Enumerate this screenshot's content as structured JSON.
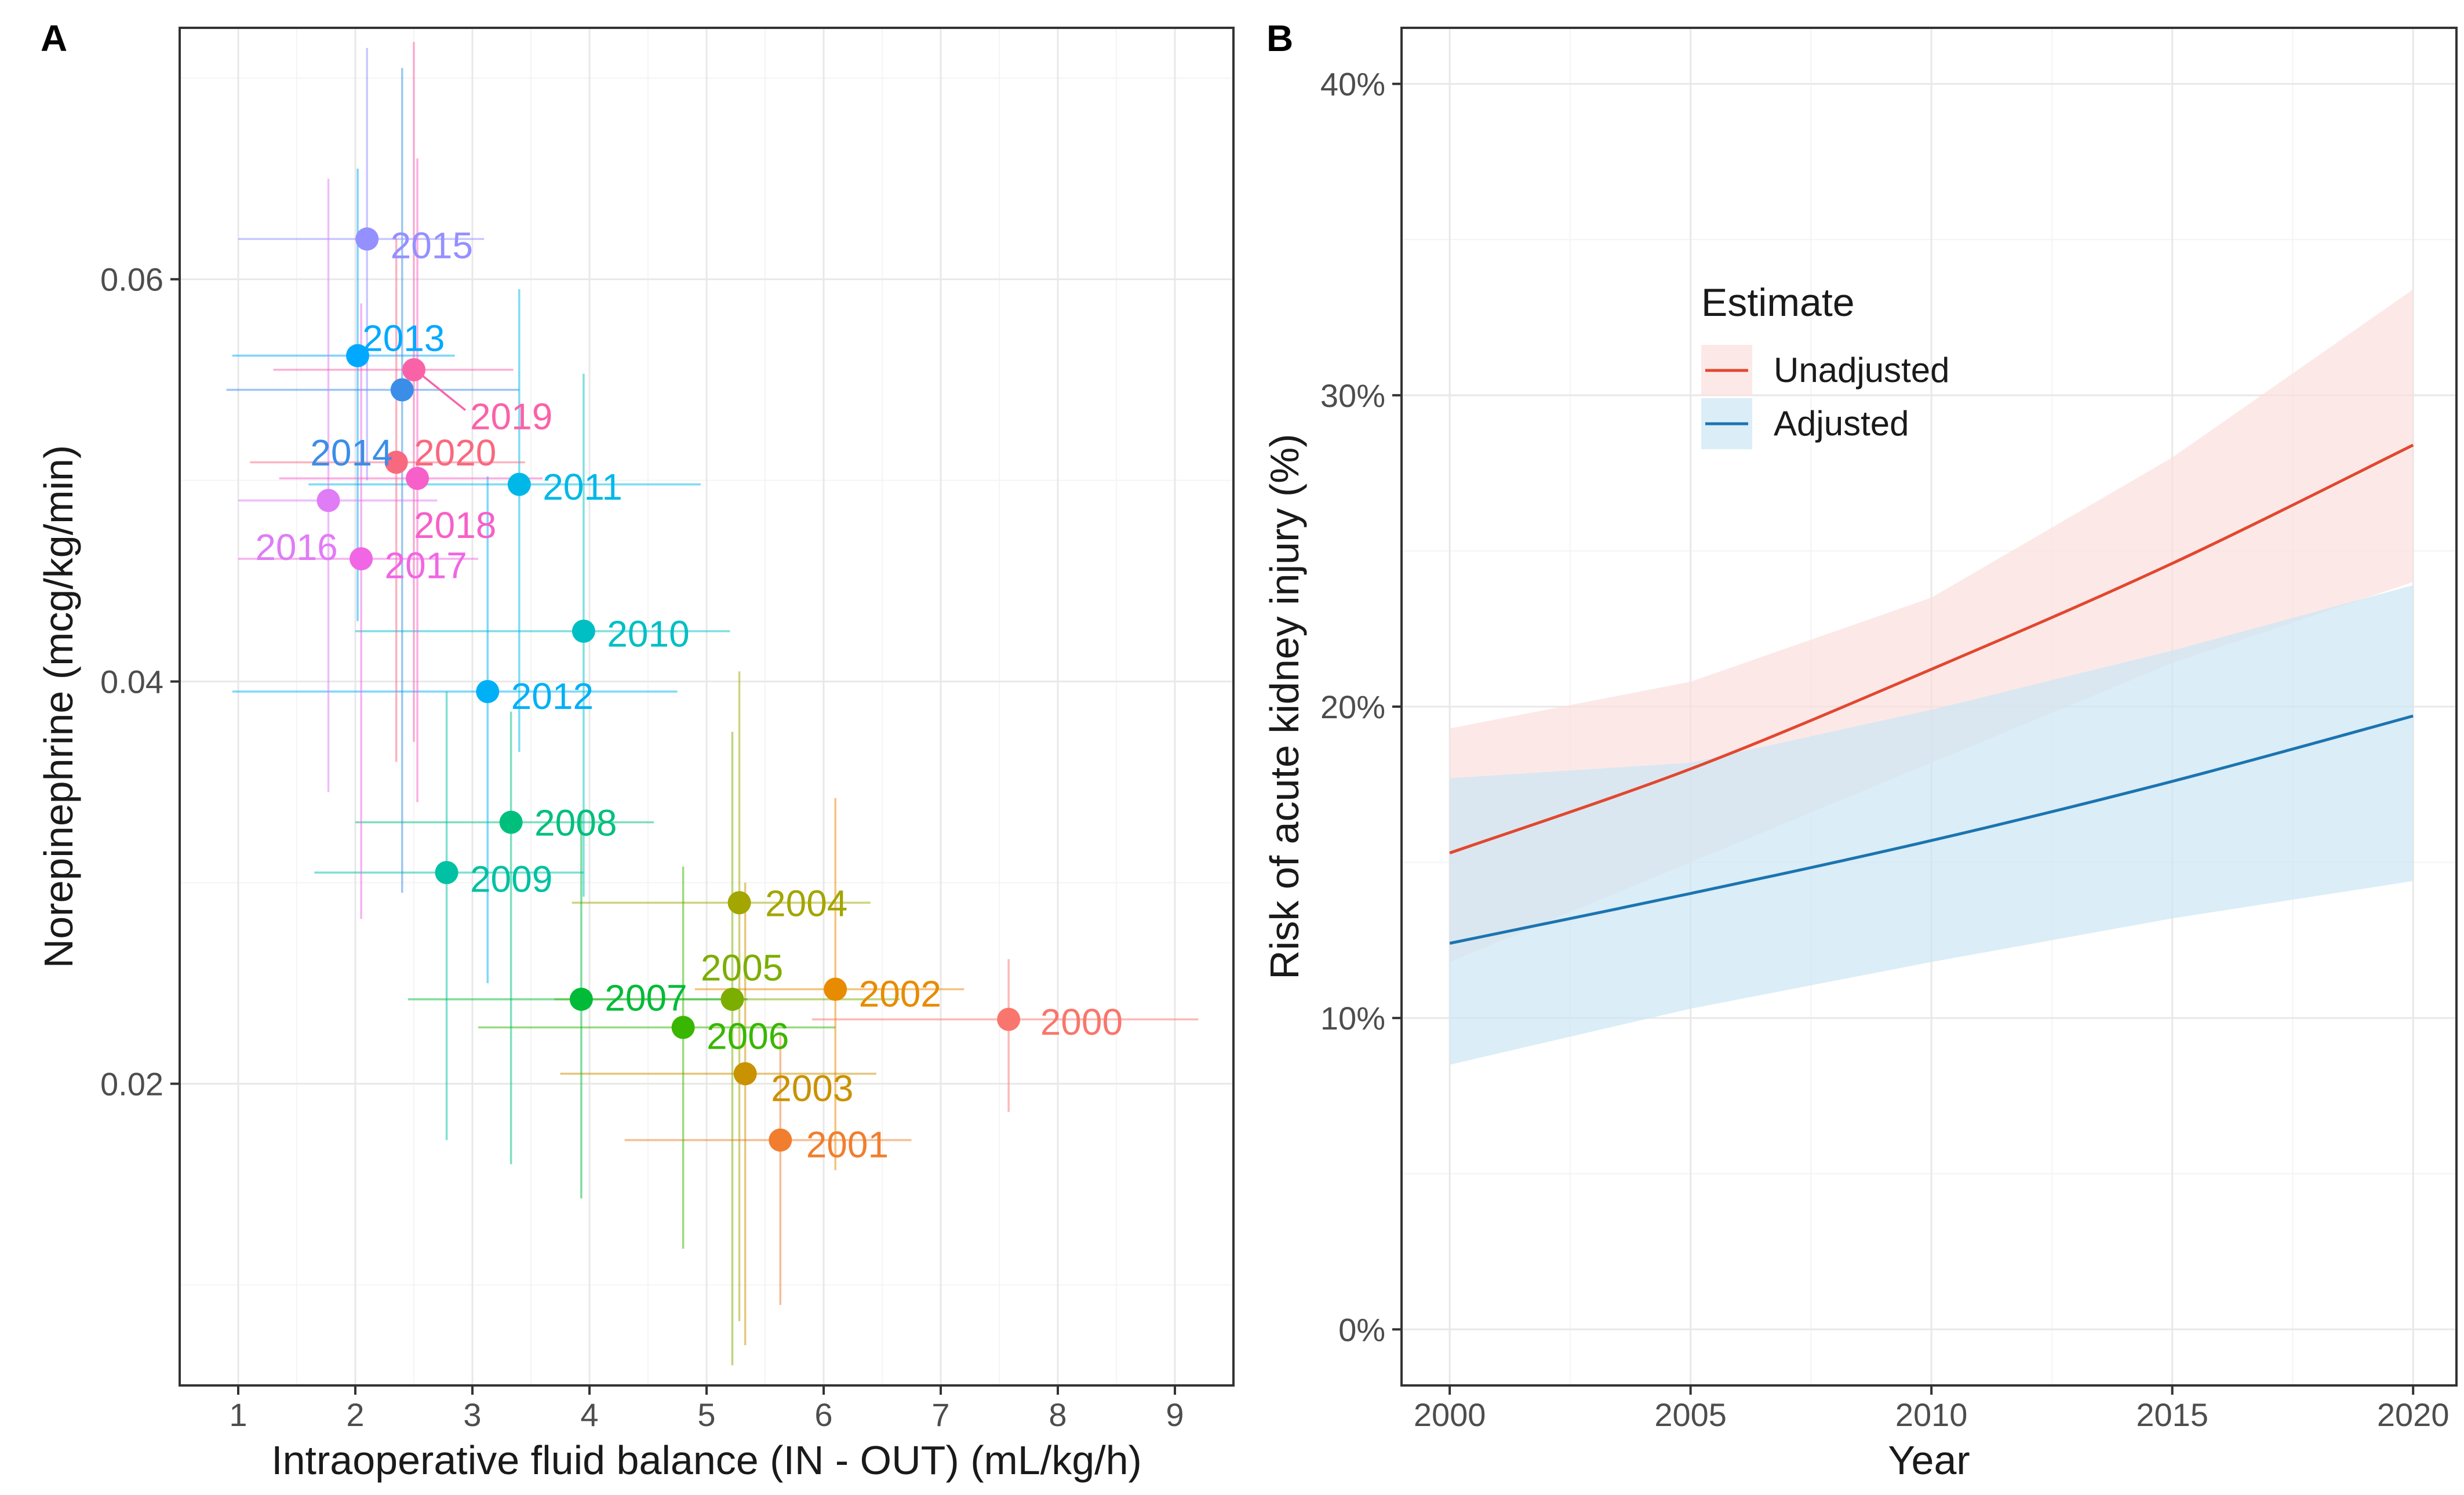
{
  "colors": {
    "panel_border": "#333333",
    "grid_major": "#e8e8e8",
    "grid_minor": "#f4f4f4",
    "axis_text": "#4d4d4d",
    "title_text": "#1a1a1a",
    "unadjusted": "#e2472f",
    "unadjusted_band": "#fbe0dd",
    "adjusted": "#1b74b0",
    "adjusted_band": "#cce6f4"
  },
  "chart_data": [
    {
      "panel": "A",
      "type": "scatter",
      "xlabel": "Intraoperative fluid balance (IN - OUT) (mL/kg/h)",
      "ylabel": "Norepinephrine (mcg/kg/min)",
      "xlim": [
        0.5,
        9.5
      ],
      "ylim": [
        0.005,
        0.0725
      ],
      "x_ticks": [
        1,
        2,
        3,
        4,
        5,
        6,
        7,
        8,
        9
      ],
      "x_tick_labels": [
        "1",
        "2",
        "3",
        "4",
        "5",
        "6",
        "7",
        "8",
        "9"
      ],
      "y_ticks": [
        0.02,
        0.04,
        0.06
      ],
      "y_tick_labels": [
        "0.02",
        "0.04",
        "0.06"
      ],
      "points": [
        {
          "label": "2000",
          "x": 7.58,
          "y": 0.0232,
          "xlo": 5.9,
          "xhi": 9.2,
          "ylo": 0.0186,
          "yhi": 0.0262,
          "color": "#f8766d",
          "lx": 7.85,
          "ly": 0.0231,
          "anchor": "start"
        },
        {
          "label": "2001",
          "x": 5.63,
          "y": 0.0172,
          "xlo": 4.3,
          "xhi": 6.75,
          "ylo": 0.009,
          "yhi": 0.0225,
          "color": "#f07e2e",
          "lx": 5.85,
          "ly": 0.017,
          "anchor": "start"
        },
        {
          "label": "2002",
          "x": 6.1,
          "y": 0.0247,
          "xlo": 4.9,
          "xhi": 7.2,
          "ylo": 0.0157,
          "yhi": 0.0342,
          "color": "#e78b00",
          "lx": 6.3,
          "ly": 0.0245,
          "anchor": "start"
        },
        {
          "label": "2003",
          "x": 5.33,
          "y": 0.0205,
          "xlo": 3.75,
          "xhi": 6.45,
          "ylo": 0.007,
          "yhi": 0.03,
          "color": "#c99200",
          "lx": 5.55,
          "ly": 0.0198,
          "anchor": "start"
        },
        {
          "label": "2004",
          "x": 5.28,
          "y": 0.029,
          "xlo": 3.85,
          "xhi": 6.4,
          "ylo": 0.0082,
          "yhi": 0.0405,
          "color": "#a3a500",
          "lx": 5.5,
          "ly": 0.029,
          "anchor": "start"
        },
        {
          "label": "2005",
          "x": 5.22,
          "y": 0.0242,
          "xlo": 3.7,
          "xhi": 6.65,
          "ylo": 0.006,
          "yhi": 0.0375,
          "color": "#7cae00",
          "lx": 4.95,
          "ly": 0.0258,
          "anchor": "start"
        },
        {
          "label": "2006",
          "x": 4.8,
          "y": 0.0228,
          "xlo": 3.05,
          "xhi": 6.1,
          "ylo": 0.0118,
          "yhi": 0.0308,
          "color": "#39b600",
          "lx": 5.0,
          "ly": 0.0224,
          "anchor": "start"
        },
        {
          "label": "2007",
          "x": 3.93,
          "y": 0.0242,
          "xlo": 2.45,
          "xhi": 5.35,
          "ylo": 0.0143,
          "yhi": 0.0335,
          "color": "#00bb38",
          "lx": 4.13,
          "ly": 0.0243,
          "anchor": "start"
        },
        {
          "label": "2008",
          "x": 3.33,
          "y": 0.033,
          "xlo": 2.0,
          "xhi": 4.55,
          "ylo": 0.016,
          "yhi": 0.0385,
          "color": "#00bf7d",
          "lx": 3.53,
          "ly": 0.033,
          "anchor": "start"
        },
        {
          "label": "2009",
          "x": 2.78,
          "y": 0.0305,
          "xlo": 1.65,
          "xhi": 3.95,
          "ylo": 0.0172,
          "yhi": 0.0395,
          "color": "#00c1a3",
          "lx": 2.98,
          "ly": 0.0302,
          "anchor": "start"
        },
        {
          "label": "2010",
          "x": 3.95,
          "y": 0.0425,
          "xlo": 2.0,
          "xhi": 5.2,
          "ylo": 0.0293,
          "yhi": 0.0553,
          "color": "#00bfc4",
          "lx": 4.15,
          "ly": 0.0424,
          "anchor": "start"
        },
        {
          "label": "2011",
          "x": 3.4,
          "y": 0.0498,
          "xlo": 1.6,
          "xhi": 4.95,
          "ylo": 0.0365,
          "yhi": 0.0595,
          "color": "#00b8e7",
          "lx": 3.6,
          "ly": 0.0497,
          "anchor": "start"
        },
        {
          "label": "2012",
          "x": 3.13,
          "y": 0.0395,
          "xlo": 0.95,
          "xhi": 4.75,
          "ylo": 0.025,
          "yhi": 0.0502,
          "color": "#00b0f6",
          "lx": 3.33,
          "ly": 0.0393,
          "anchor": "start"
        },
        {
          "label": "2013",
          "x": 2.02,
          "y": 0.0562,
          "xlo": 0.95,
          "xhi": 2.85,
          "ylo": 0.043,
          "yhi": 0.0655,
          "color": "#00a9ff",
          "lx": 2.06,
          "ly": 0.0571,
          "anchor": "start"
        },
        {
          "label": "2014",
          "x": 2.4,
          "y": 0.0545,
          "xlo": 0.9,
          "xhi": 3.4,
          "ylo": 0.0295,
          "yhi": 0.0705,
          "color": "#3a8ee8",
          "lx": 2.32,
          "ly": 0.0514,
          "anchor": "end"
        },
        {
          "label": "2015",
          "x": 2.1,
          "y": 0.062,
          "xlo": 1.0,
          "xhi": 3.1,
          "ylo": 0.05,
          "yhi": 0.0715,
          "color": "#9590ff",
          "lx": 2.3,
          "ly": 0.0617,
          "anchor": "start"
        },
        {
          "label": "2016",
          "x": 1.77,
          "y": 0.049,
          "xlo": 1.0,
          "xhi": 2.7,
          "ylo": 0.0345,
          "yhi": 0.065,
          "color": "#e07cf6",
          "lx": 1.85,
          "ly": 0.0467,
          "anchor": "end"
        },
        {
          "label": "2017",
          "x": 2.05,
          "y": 0.0461,
          "xlo": 1.0,
          "xhi": 3.05,
          "ylo": 0.0282,
          "yhi": 0.0588,
          "color": "#f066e5",
          "lx": 2.25,
          "ly": 0.0458,
          "anchor": "start"
        },
        {
          "label": "2018",
          "x": 2.53,
          "y": 0.0501,
          "xlo": 1.35,
          "xhi": 3.6,
          "ylo": 0.034,
          "yhi": 0.066,
          "color": "#f760c8",
          "lx": 2.5,
          "ly": 0.0478,
          "anchor": "start"
        },
        {
          "label": "2019",
          "x": 2.5,
          "y": 0.0555,
          "xlo": 1.3,
          "xhi": 3.35,
          "ylo": 0.037,
          "yhi": 0.0718,
          "color": "#fa62a8",
          "lx": 2.98,
          "ly": 0.0532,
          "anchor": "start",
          "leader": true
        },
        {
          "label": "2020",
          "x": 2.35,
          "y": 0.0509,
          "xlo": 1.1,
          "xhi": 3.45,
          "ylo": 0.036,
          "yhi": 0.062,
          "color": "#f8697f",
          "lx": 2.5,
          "ly": 0.0514,
          "anchor": "start"
        }
      ]
    },
    {
      "panel": "B",
      "type": "line",
      "xlabel": "Year",
      "ylabel": "Risk of acute kidney injury (%)",
      "xlim": [
        1999.0,
        2020.9
      ],
      "ylim": [
        -0.018,
        0.418
      ],
      "x_ticks": [
        2000,
        2005,
        2010,
        2015,
        2020
      ],
      "x_tick_labels": [
        "2000",
        "2005",
        "2010",
        "2015",
        "2020"
      ],
      "y_ticks": [
        0,
        0.1,
        0.2,
        0.3,
        0.4
      ],
      "y_tick_labels": [
        "0%",
        "10%",
        "20%",
        "30%",
        "40%"
      ],
      "legend": {
        "title": "Estimate",
        "position": "top-center"
      },
      "series": [
        {
          "name": "Unadjusted",
          "color_key": "unadjusted",
          "band_key": "unadjusted_band",
          "x": [
            2000,
            2005,
            2010,
            2015,
            2020
          ],
          "estimate": [
            0.153,
            0.18,
            0.212,
            0.246,
            0.284
          ],
          "lower": [
            0.118,
            0.15,
            0.182,
            0.214,
            0.24
          ],
          "upper": [
            0.193,
            0.208,
            0.235,
            0.28,
            0.334
          ]
        },
        {
          "name": "Adjusted",
          "color_key": "adjusted",
          "band_key": "adjusted_band",
          "x": [
            2000,
            2005,
            2010,
            2015,
            2020
          ],
          "estimate": [
            0.124,
            0.14,
            0.157,
            0.176,
            0.197
          ],
          "lower": [
            0.085,
            0.103,
            0.118,
            0.132,
            0.144
          ],
          "upper": [
            0.177,
            0.182,
            0.199,
            0.218,
            0.239
          ]
        }
      ]
    }
  ],
  "labels": {
    "panel_a_letter": "A",
    "panel_b_letter": "B"
  }
}
